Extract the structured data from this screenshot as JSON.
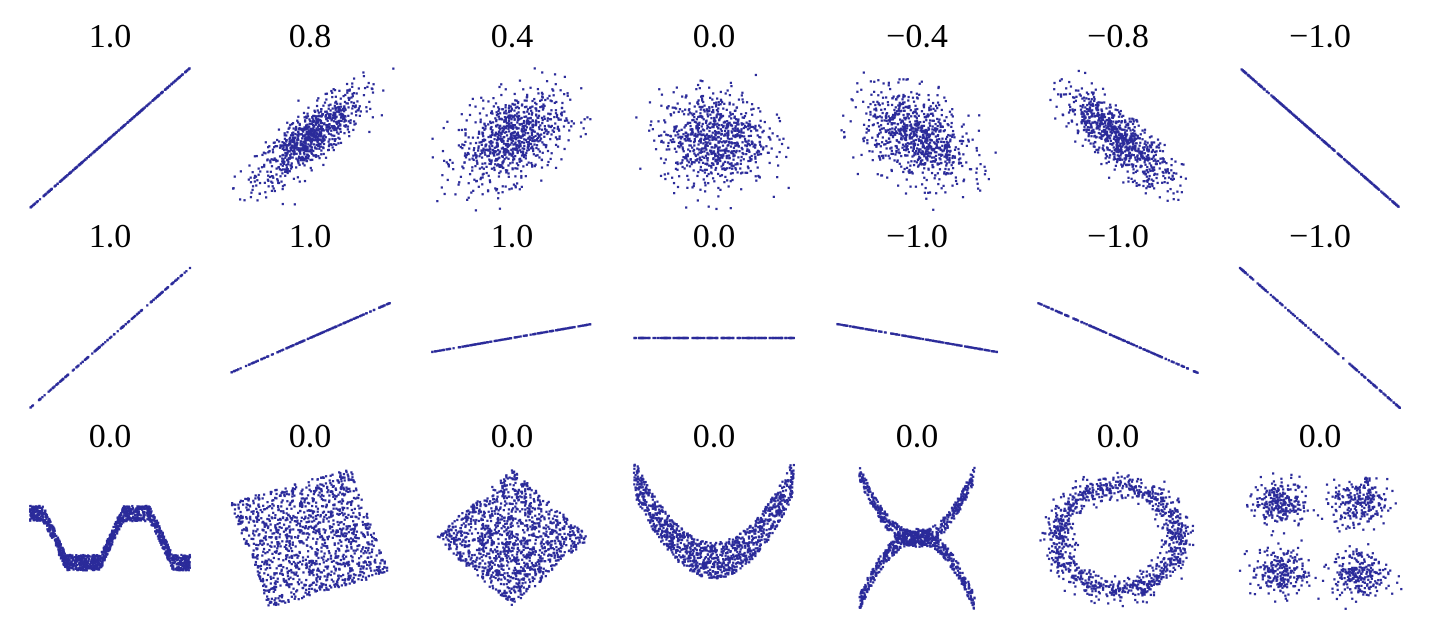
{
  "chart_data": [
    {
      "type": "scatter",
      "row": 1,
      "coefficient": "1.0",
      "pattern": "linear",
      "correlation": 1.0
    },
    {
      "type": "scatter",
      "row": 1,
      "coefficient": "0.8",
      "pattern": "gaussian",
      "correlation": 0.8
    },
    {
      "type": "scatter",
      "row": 1,
      "coefficient": "0.4",
      "pattern": "gaussian",
      "correlation": 0.4
    },
    {
      "type": "scatter",
      "row": 1,
      "coefficient": "0.0",
      "pattern": "gaussian",
      "correlation": 0.0
    },
    {
      "type": "scatter",
      "row": 1,
      "coefficient": "−0.4",
      "pattern": "gaussian",
      "correlation": -0.4
    },
    {
      "type": "scatter",
      "row": 1,
      "coefficient": "−0.8",
      "pattern": "gaussian",
      "correlation": -0.8
    },
    {
      "type": "scatter",
      "row": 1,
      "coefficient": "−1.0",
      "pattern": "linear",
      "correlation": -1.0
    },
    {
      "type": "scatter",
      "row": 2,
      "coefficient": "1.0",
      "pattern": "line",
      "slope": 1.0
    },
    {
      "type": "scatter",
      "row": 2,
      "coefficient": "1.0",
      "pattern": "line",
      "slope": 0.5
    },
    {
      "type": "scatter",
      "row": 2,
      "coefficient": "1.0",
      "pattern": "line",
      "slope": 0.2
    },
    {
      "type": "scatter",
      "row": 2,
      "coefficient": "0.0",
      "pattern": "line",
      "slope": 0.0
    },
    {
      "type": "scatter",
      "row": 2,
      "coefficient": "−1.0",
      "pattern": "line",
      "slope": -0.2
    },
    {
      "type": "scatter",
      "row": 2,
      "coefficient": "−1.0",
      "pattern": "line",
      "slope": -0.5
    },
    {
      "type": "scatter",
      "row": 2,
      "coefficient": "−1.0",
      "pattern": "line",
      "slope": -1.0
    },
    {
      "type": "scatter",
      "row": 3,
      "coefficient": "0.0",
      "pattern": "wave"
    },
    {
      "type": "scatter",
      "row": 3,
      "coefficient": "0.0",
      "pattern": "rotated-square"
    },
    {
      "type": "scatter",
      "row": 3,
      "coefficient": "0.0",
      "pattern": "diamond"
    },
    {
      "type": "scatter",
      "row": 3,
      "coefficient": "0.0",
      "pattern": "parabola"
    },
    {
      "type": "scatter",
      "row": 3,
      "coefficient": "0.0",
      "pattern": "x-shape"
    },
    {
      "type": "scatter",
      "row": 3,
      "coefficient": "0.0",
      "pattern": "ring"
    },
    {
      "type": "scatter",
      "row": 3,
      "coefficient": "0.0",
      "pattern": "four-clusters"
    }
  ],
  "colors": {
    "points": "#2b2b9a",
    "background": "#ffffff",
    "text": "#000000"
  }
}
